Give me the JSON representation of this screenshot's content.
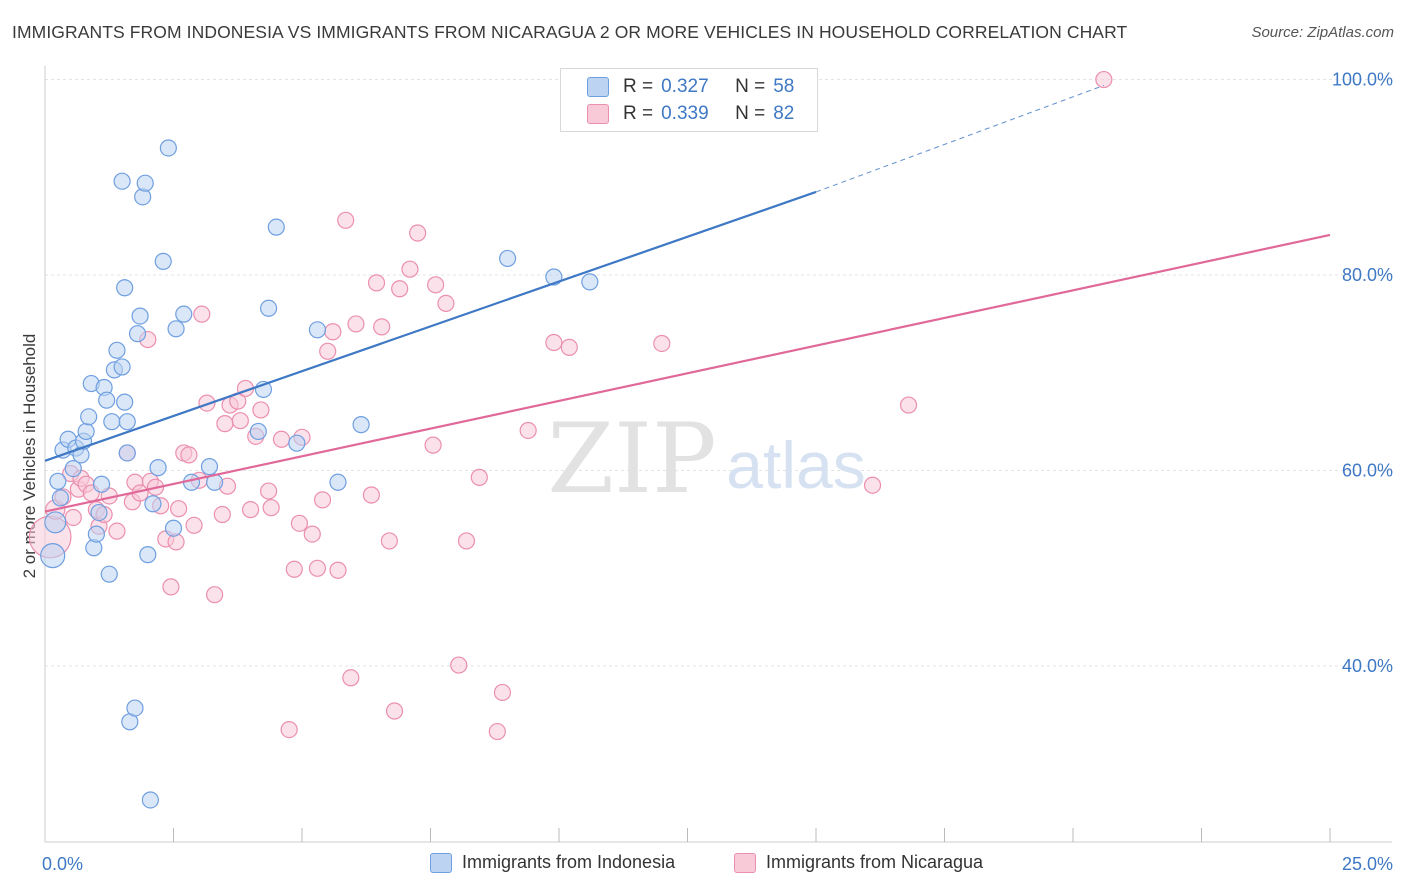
{
  "title": "IMMIGRANTS FROM INDONESIA VS IMMIGRANTS FROM NICARAGUA 2 OR MORE VEHICLES IN HOUSEHOLD CORRELATION CHART",
  "source": "Source: ZipAtlas.com",
  "watermark": {
    "zip": "ZIP",
    "atlas": "atlas"
  },
  "legend": {
    "r_label": "R =",
    "n_label": "N =",
    "rows": [
      {
        "r": "0.327",
        "n": "58",
        "color": "#6f9fe0",
        "fill": "#bcd3f2"
      },
      {
        "r": "0.339",
        "n": "82",
        "color": "#eb8fae",
        "fill": "#f8c9d7"
      }
    ]
  },
  "chart_data": {
    "type": "scatter",
    "xlabel": "",
    "ylabel": "2 or more Vehicles in Household",
    "xlim": [
      0,
      25
    ],
    "ylim": [
      22,
      102
    ],
    "x_tick_labels": [
      {
        "value": 0,
        "label": "0.0%"
      },
      {
        "value": 25,
        "label": "25.0%"
      }
    ],
    "y_tick_labels": [
      {
        "value": 40,
        "label": "40.0%"
      },
      {
        "value": 60,
        "label": "60.0%"
      },
      {
        "value": 80,
        "label": "80.0%"
      },
      {
        "value": 100,
        "label": "100.0%"
      }
    ],
    "x_minor_ticks": [
      2.5,
      5,
      7.5,
      10,
      12.5,
      15,
      17.5,
      20,
      22.5,
      25
    ],
    "grid": true,
    "colors": {
      "indonesia": "#3f78c4",
      "nicaragua": "#e0699a",
      "axis_text": "#3f78c4"
    },
    "series": [
      {
        "name": "Immigrants from Indonesia",
        "color": "#3f78c4",
        "marker_fill": "#bcd3f2",
        "marker_stroke": "#6f9fe0",
        "trend": {
          "x0": 0,
          "y0": 61.0,
          "x1": 15,
          "y1": 88.5,
          "dash_to_x": 20.6,
          "dash_to_y": 99.4
        },
        "points": [
          [
            0.15,
            51.3,
            1.5
          ],
          [
            0.2,
            54.7,
            1.3
          ],
          [
            0.25,
            58.9,
            1
          ],
          [
            0.3,
            57.2,
            1
          ],
          [
            0.35,
            62.1,
            1
          ],
          [
            0.45,
            63.2,
            1
          ],
          [
            0.55,
            60.2,
            1
          ],
          [
            0.6,
            62.3,
            1
          ],
          [
            0.7,
            61.6,
            1
          ],
          [
            0.75,
            63.0,
            1
          ],
          [
            0.8,
            64.0,
            1
          ],
          [
            0.85,
            65.5,
            1
          ],
          [
            0.9,
            68.9,
            1
          ],
          [
            0.95,
            52.1,
            1
          ],
          [
            1.0,
            53.5,
            1
          ],
          [
            1.05,
            55.7,
            1
          ],
          [
            1.1,
            58.6,
            1
          ],
          [
            1.15,
            68.5,
            1
          ],
          [
            1.2,
            67.2,
            1
          ],
          [
            1.25,
            49.4,
            1
          ],
          [
            1.3,
            65.0,
            1
          ],
          [
            1.35,
            70.3,
            1
          ],
          [
            1.4,
            72.3,
            1
          ],
          [
            1.5,
            70.6,
            1
          ],
          [
            1.55,
            67.0,
            1
          ],
          [
            1.6,
            65.0,
            1
          ],
          [
            1.5,
            89.6,
            1
          ],
          [
            1.55,
            78.7,
            1
          ],
          [
            1.6,
            61.8,
            1
          ],
          [
            1.65,
            34.3,
            1
          ],
          [
            1.75,
            35.7,
            1
          ],
          [
            1.8,
            74.0,
            1
          ],
          [
            1.85,
            75.8,
            1
          ],
          [
            1.9,
            88.0,
            1
          ],
          [
            1.95,
            89.4,
            1
          ],
          [
            2.0,
            51.4,
            1
          ],
          [
            2.05,
            26.3,
            1
          ],
          [
            2.1,
            56.6,
            1
          ],
          [
            2.2,
            60.3,
            1
          ],
          [
            2.3,
            81.4,
            1
          ],
          [
            2.4,
            93.0,
            1
          ],
          [
            2.5,
            54.1,
            1
          ],
          [
            2.55,
            74.5,
            1
          ],
          [
            2.7,
            76.0,
            1
          ],
          [
            2.85,
            58.8,
            1
          ],
          [
            3.2,
            60.4,
            1
          ],
          [
            3.3,
            58.8,
            1
          ],
          [
            4.15,
            64.0,
            1
          ],
          [
            4.25,
            68.3,
            1
          ],
          [
            4.35,
            76.6,
            1
          ],
          [
            4.5,
            84.9,
            1
          ],
          [
            4.9,
            62.8,
            1
          ],
          [
            5.3,
            74.4,
            1
          ],
          [
            5.7,
            58.8,
            1
          ],
          [
            6.15,
            64.7,
            1
          ],
          [
            9.0,
            81.7,
            1
          ],
          [
            9.9,
            79.8,
            1
          ],
          [
            10.6,
            79.3,
            1
          ]
        ]
      },
      {
        "name": "Immigrants from Nicaragua",
        "color": "#e0699a",
        "marker_fill": "#f8c9d7",
        "marker_stroke": "#eb8fae",
        "trend": {
          "x0": 0,
          "y0": 55.8,
          "x1": 25,
          "y1": 84.1
        },
        "points": [
          [
            0.1,
            53.2,
            2.6
          ],
          [
            0.2,
            56.0,
            1.2
          ],
          [
            0.35,
            57.3,
            1
          ],
          [
            0.5,
            59.7,
            1
          ],
          [
            0.55,
            55.2,
            1
          ],
          [
            0.65,
            58.1,
            1
          ],
          [
            0.7,
            59.2,
            1
          ],
          [
            0.8,
            58.6,
            1
          ],
          [
            0.9,
            57.7,
            1
          ],
          [
            1.0,
            56.0,
            1
          ],
          [
            1.05,
            54.3,
            1
          ],
          [
            1.15,
            55.5,
            1
          ],
          [
            1.25,
            57.4,
            1
          ],
          [
            1.4,
            53.8,
            1
          ],
          [
            1.6,
            61.8,
            1
          ],
          [
            1.7,
            56.8,
            1
          ],
          [
            1.75,
            58.8,
            1
          ],
          [
            1.85,
            57.7,
            1
          ],
          [
            2.0,
            73.4,
            1
          ],
          [
            2.05,
            58.9,
            1
          ],
          [
            2.15,
            58.3,
            1
          ],
          [
            2.25,
            56.4,
            1
          ],
          [
            2.35,
            53.0,
            1
          ],
          [
            2.45,
            48.1,
            1
          ],
          [
            2.55,
            52.7,
            1
          ],
          [
            2.6,
            56.1,
            1
          ],
          [
            2.7,
            61.8,
            1
          ],
          [
            2.8,
            61.6,
            1
          ],
          [
            2.9,
            54.4,
            1
          ],
          [
            3.0,
            59.0,
            1
          ],
          [
            3.05,
            76.0,
            1
          ],
          [
            3.15,
            66.9,
            1
          ],
          [
            3.3,
            47.3,
            1
          ],
          [
            3.45,
            55.5,
            1
          ],
          [
            3.5,
            64.8,
            1
          ],
          [
            3.55,
            58.4,
            1
          ],
          [
            3.6,
            66.7,
            1
          ],
          [
            3.75,
            67.1,
            1
          ],
          [
            3.8,
            65.1,
            1
          ],
          [
            3.9,
            68.4,
            1
          ],
          [
            4.0,
            56.0,
            1
          ],
          [
            4.1,
            63.5,
            1
          ],
          [
            4.2,
            66.2,
            1
          ],
          [
            4.35,
            57.9,
            1
          ],
          [
            4.4,
            56.2,
            1
          ],
          [
            4.6,
            63.2,
            1
          ],
          [
            4.75,
            33.5,
            1
          ],
          [
            4.85,
            49.9,
            1
          ],
          [
            4.95,
            54.6,
            1
          ],
          [
            5.0,
            63.4,
            1
          ],
          [
            5.2,
            53.5,
            1
          ],
          [
            5.3,
            50.0,
            1
          ],
          [
            5.4,
            57.0,
            1
          ],
          [
            5.5,
            72.2,
            1
          ],
          [
            5.6,
            74.2,
            1
          ],
          [
            5.7,
            49.8,
            1
          ],
          [
            5.85,
            85.6,
            1
          ],
          [
            5.95,
            38.8,
            1
          ],
          [
            6.05,
            75.0,
            1
          ],
          [
            6.35,
            57.5,
            1
          ],
          [
            6.45,
            79.2,
            1
          ],
          [
            6.55,
            74.7,
            1
          ],
          [
            6.7,
            52.8,
            1
          ],
          [
            6.8,
            35.4,
            1
          ],
          [
            6.9,
            78.6,
            1
          ],
          [
            7.1,
            80.6,
            1
          ],
          [
            7.25,
            84.3,
            1
          ],
          [
            7.55,
            62.6,
            1
          ],
          [
            7.6,
            79.0,
            1
          ],
          [
            7.8,
            77.1,
            1
          ],
          [
            8.05,
            40.1,
            1
          ],
          [
            8.2,
            52.8,
            1
          ],
          [
            8.45,
            59.3,
            1
          ],
          [
            8.8,
            33.3,
            1
          ],
          [
            8.9,
            37.3,
            1
          ],
          [
            9.4,
            64.1,
            1
          ],
          [
            9.9,
            73.1,
            1
          ],
          [
            10.2,
            72.6,
            1
          ],
          [
            12.0,
            73.0,
            1
          ],
          [
            16.1,
            58.5,
            1
          ],
          [
            16.8,
            66.7,
            1
          ],
          [
            20.6,
            100.0,
            1
          ]
        ]
      }
    ]
  }
}
